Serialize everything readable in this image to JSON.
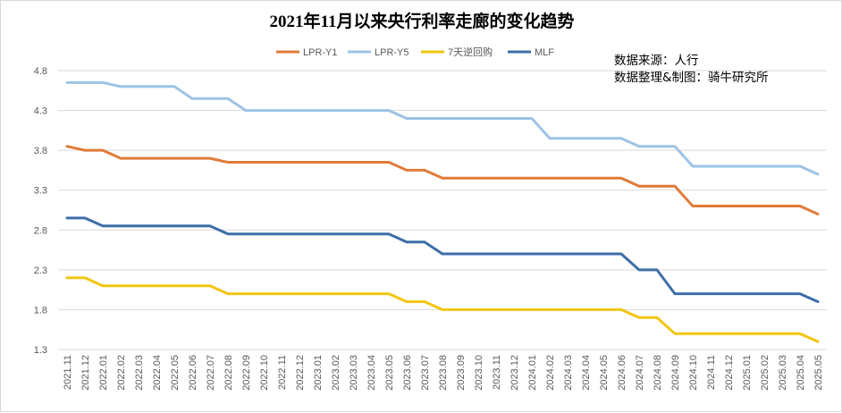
{
  "chart_data": {
    "type": "line",
    "title": "2021年11月以来央行利率走廊的变化趋势",
    "source_lines": [
      "数据来源：人行",
      "数据整理&制图：骑牛研究所"
    ],
    "xlabel": "",
    "ylabel": "",
    "ylim": [
      1.3,
      4.8
    ],
    "yticks": [
      "4.8",
      "4.3",
      "3.8",
      "3.3",
      "2.8",
      "2.3",
      "1.8",
      "1.3"
    ],
    "grid": true,
    "legend_position": "top",
    "categories": [
      "2021.11",
      "2021.12",
      "2022.01",
      "2022.02",
      "2022.03",
      "2022.04",
      "2022.05",
      "2022.06",
      "2022.07",
      "2022.08",
      "2022.09",
      "2022.10",
      "2022.11",
      "2022.12",
      "2023.01",
      "2023.02",
      "2023.03",
      "2023.04",
      "2023.05",
      "2023.06",
      "2023.07",
      "2023.08",
      "2023.09",
      "2023.10",
      "2023.11",
      "2023.12",
      "2024.01",
      "2024.02",
      "2024.03",
      "2024.04",
      "2024.05",
      "2024.06",
      "2024.07",
      "2024.08",
      "2024.09",
      "2024.10",
      "2024.11",
      "2024.12",
      "2025.01",
      "2025.02",
      "2025.03",
      "2025.04",
      "2025.05"
    ],
    "series": [
      {
        "name": "LPR-Y1",
        "color": "#e07b39",
        "values": [
          3.85,
          3.8,
          3.8,
          3.7,
          3.7,
          3.7,
          3.7,
          3.7,
          3.7,
          3.65,
          3.65,
          3.65,
          3.65,
          3.65,
          3.65,
          3.65,
          3.65,
          3.65,
          3.65,
          3.55,
          3.55,
          3.45,
          3.45,
          3.45,
          3.45,
          3.45,
          3.45,
          3.45,
          3.45,
          3.45,
          3.45,
          3.45,
          3.35,
          3.35,
          3.35,
          3.1,
          3.1,
          3.1,
          3.1,
          3.1,
          3.1,
          3.1,
          3.0
        ]
      },
      {
        "name": "LPR-Y5",
        "color": "#9dc3e6",
        "values": [
          4.65,
          4.65,
          4.65,
          4.6,
          4.6,
          4.6,
          4.6,
          4.45,
          4.45,
          4.45,
          4.3,
          4.3,
          4.3,
          4.3,
          4.3,
          4.3,
          4.3,
          4.3,
          4.3,
          4.2,
          4.2,
          4.2,
          4.2,
          4.2,
          4.2,
          4.2,
          4.2,
          3.95,
          3.95,
          3.95,
          3.95,
          3.95,
          3.85,
          3.85,
          3.85,
          3.6,
          3.6,
          3.6,
          3.6,
          3.6,
          3.6,
          3.6,
          3.5
        ]
      },
      {
        "name": "7天逆回购",
        "color": "#f2c511",
        "values": [
          2.2,
          2.2,
          2.1,
          2.1,
          2.1,
          2.1,
          2.1,
          2.1,
          2.1,
          2.0,
          2.0,
          2.0,
          2.0,
          2.0,
          2.0,
          2.0,
          2.0,
          2.0,
          2.0,
          1.9,
          1.9,
          1.8,
          1.8,
          1.8,
          1.8,
          1.8,
          1.8,
          1.8,
          1.8,
          1.8,
          1.8,
          1.8,
          1.7,
          1.7,
          1.5,
          1.5,
          1.5,
          1.5,
          1.5,
          1.5,
          1.5,
          1.5,
          1.4
        ]
      },
      {
        "name": "MLF",
        "color": "#3c6ea8",
        "values": [
          2.95,
          2.95,
          2.85,
          2.85,
          2.85,
          2.85,
          2.85,
          2.85,
          2.85,
          2.75,
          2.75,
          2.75,
          2.75,
          2.75,
          2.75,
          2.75,
          2.75,
          2.75,
          2.75,
          2.65,
          2.65,
          2.5,
          2.5,
          2.5,
          2.5,
          2.5,
          2.5,
          2.5,
          2.5,
          2.5,
          2.5,
          2.5,
          2.3,
          2.3,
          2.0,
          2.0,
          2.0,
          2.0,
          2.0,
          2.0,
          2.0,
          2.0,
          1.9
        ]
      }
    ]
  }
}
